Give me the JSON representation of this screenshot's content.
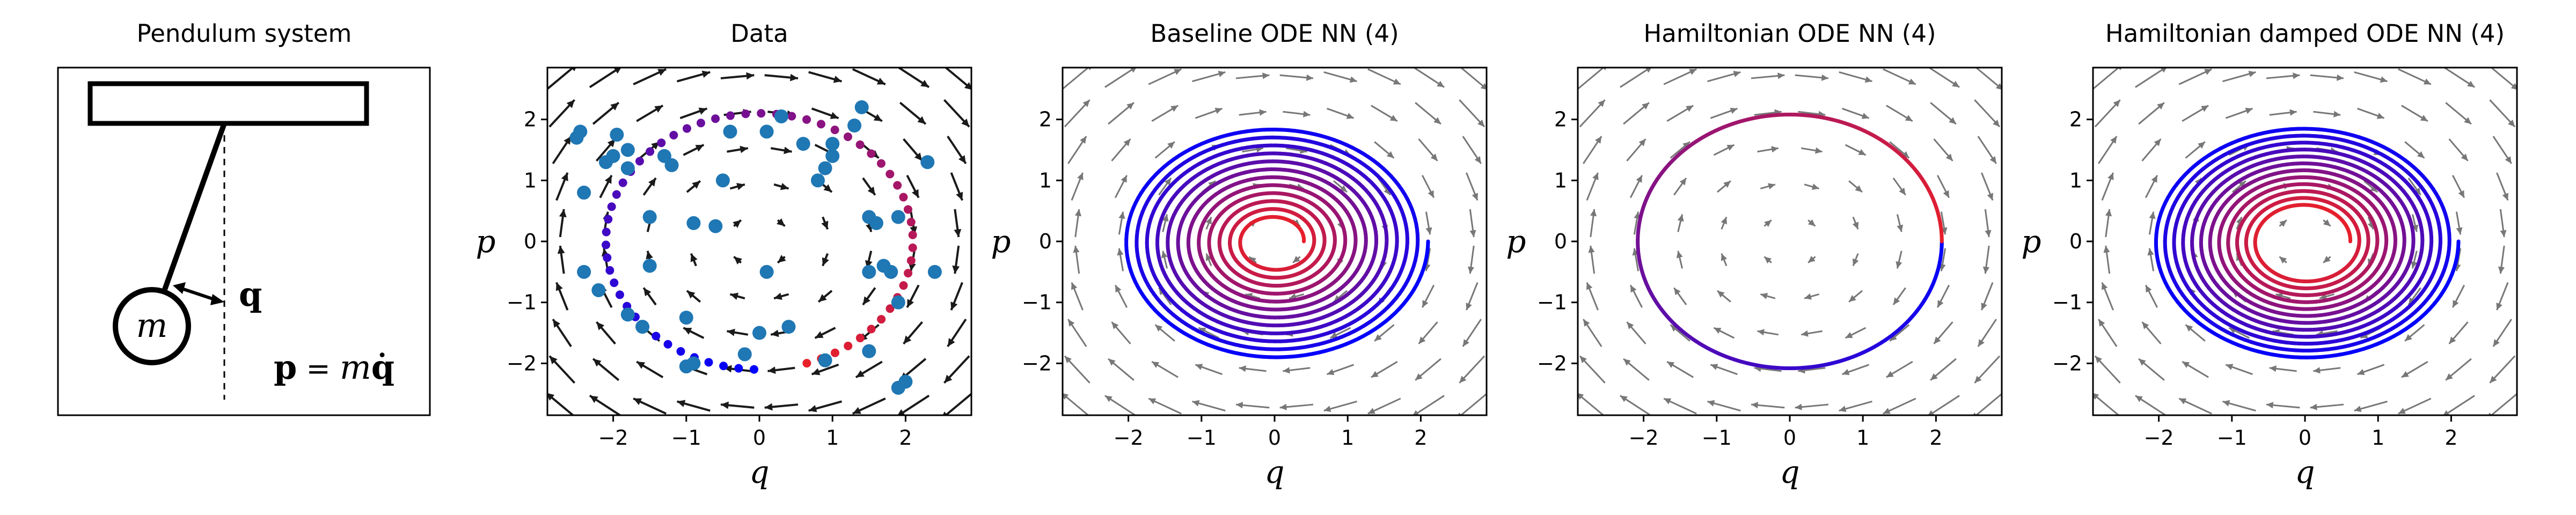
{
  "diagram": {
    "title": "Pendulum system",
    "mass_label": "m",
    "q_label": "q",
    "p_label_lhs": "p",
    "p_label_eq": " = ",
    "p_label_m": "m",
    "p_label_qdot": "q̇"
  },
  "colors": {
    "start": "#0000ff",
    "end": "#e8202a",
    "data_points": "#1f77b4",
    "field_dark": "#1a1a1a",
    "field_gray": "#777777"
  },
  "chart_data": [
    {
      "type": "scatter",
      "title": "Data",
      "xlabel": "q",
      "ylabel": "p",
      "xlim": [
        -2.9,
        2.9
      ],
      "ylim": [
        -2.85,
        2.85
      ],
      "xticks": [
        -2,
        -1,
        0,
        1,
        2
      ],
      "yticks": [
        -2,
        -1,
        0,
        1,
        2
      ],
      "field": "dark",
      "trajectory": {
        "kind": "colored_dots",
        "r0": 2.1,
        "r1": 2.1,
        "theta_start_deg": -72,
        "theta_span_deg": 340,
        "n": 60
      },
      "scatter": {
        "x": [
          -2.5,
          -2.45,
          -2.4,
          -2.1,
          -2.0,
          -1.95,
          -1.8,
          -1.8,
          -1.2,
          -1.5,
          -0.6,
          -0.5,
          -0.4,
          0.1,
          0.3,
          0.6,
          0.8,
          0.9,
          1.0,
          1.0,
          1.3,
          1.4,
          1.5,
          1.6,
          1.8,
          1.9,
          1.9,
          2.3,
          2.4,
          -2.4,
          -2.2,
          -1.8,
          -1.6,
          -1.0,
          -1.0,
          -0.9,
          -0.2,
          0.0,
          0.1,
          0.4,
          0.9,
          1.5,
          1.5,
          1.7,
          2.0,
          -1.3,
          -0.9,
          -1.5,
          1.9
        ],
        "y": [
          1.7,
          1.8,
          0.8,
          1.3,
          1.4,
          1.75,
          1.5,
          1.2,
          1.25,
          0.4,
          0.25,
          1.0,
          1.8,
          1.8,
          2.05,
          1.6,
          1.0,
          1.2,
          1.4,
          1.6,
          1.9,
          2.2,
          0.4,
          0.3,
          -0.5,
          -1.0,
          0.4,
          1.3,
          -0.5,
          -0.5,
          -0.8,
          -1.2,
          -1.4,
          -1.25,
          -2.05,
          -2.0,
          -1.85,
          -1.5,
          -0.5,
          -1.4,
          -1.95,
          -1.8,
          -0.5,
          -0.4,
          -2.3,
          1.4,
          0.3,
          -0.4,
          -2.4
        ]
      }
    },
    {
      "type": "line",
      "title": "Baseline ODE NN (4)",
      "xlabel": "q",
      "ylabel": "p",
      "xlim": [
        -2.9,
        2.9
      ],
      "ylim": [
        -2.85,
        2.85
      ],
      "xticks": [
        -2,
        -1,
        0,
        1,
        2
      ],
      "yticks": [
        -2,
        -1,
        0,
        1,
        2
      ],
      "field": "gray",
      "trajectory": {
        "kind": "spiral",
        "r0": 2.1,
        "r1": 0.4,
        "loops": 12,
        "n": 1600,
        "y_scale": 0.92
      }
    },
    {
      "type": "line",
      "title": "Hamiltonian ODE NN (4)",
      "xlabel": "q",
      "ylabel": "p",
      "xlim": [
        -2.9,
        2.9
      ],
      "ylim": [
        -2.85,
        2.85
      ],
      "xticks": [
        -2,
        -1,
        0,
        1,
        2
      ],
      "yticks": [
        -2,
        -1,
        0,
        1,
        2
      ],
      "field": "gray",
      "trajectory": {
        "kind": "ring",
        "r0": 2.08,
        "r1": 2.08,
        "loops": 1,
        "n": 400,
        "y_scale": 1.0
      }
    },
    {
      "type": "line",
      "title": "Hamiltonian damped ODE NN (4)",
      "xlabel": "q",
      "ylabel": "p",
      "xlim": [
        -2.9,
        2.9
      ],
      "ylim": [
        -2.85,
        2.85
      ],
      "xticks": [
        -2,
        -1,
        0,
        1,
        2
      ],
      "yticks": [
        -2,
        -1,
        0,
        1,
        2
      ],
      "field": "gray",
      "trajectory": {
        "kind": "spiral",
        "r0": 2.1,
        "r1": 0.62,
        "loops": 12,
        "n": 1600,
        "y_scale": 0.92
      }
    }
  ]
}
